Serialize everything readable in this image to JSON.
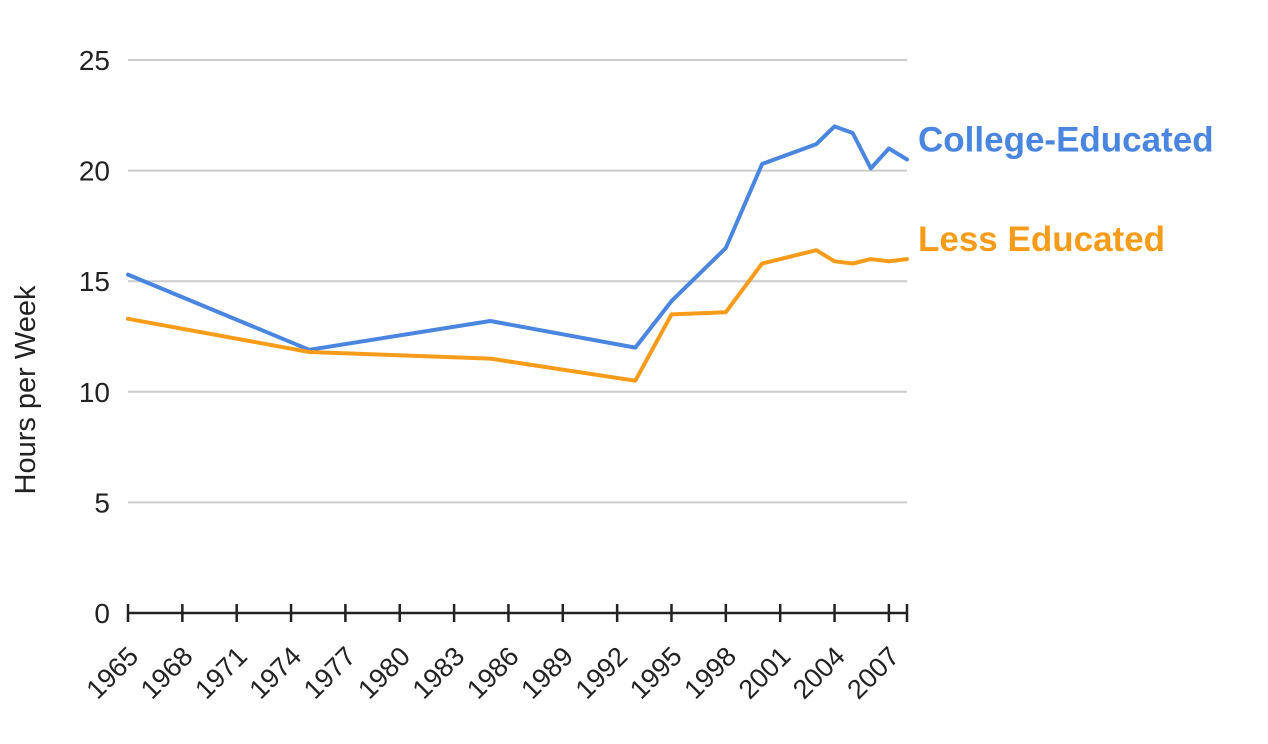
{
  "chart_data": {
    "type": "line",
    "title": "",
    "xlabel": "",
    "ylabel": "Hours per Week",
    "xlim": [
      1965,
      2008
    ],
    "ylim": [
      0,
      25
    ],
    "yticks": [
      0,
      5,
      10,
      15,
      20,
      25
    ],
    "xticks": [
      "1965",
      "1968",
      "1971",
      "1974",
      "1977",
      "1980",
      "1983",
      "1986",
      "1989",
      "1992",
      "1995",
      "1998",
      "2001",
      "2004",
      "2007"
    ],
    "grid": true,
    "legend": "inline labels at right end of lines",
    "series": [
      {
        "name": "College-Educated",
        "color": "#4a86e0",
        "points": [
          [
            1965,
            15.3
          ],
          [
            1975,
            11.9
          ],
          [
            1985,
            13.2
          ],
          [
            1993,
            12.0
          ],
          [
            1995,
            14.1
          ],
          [
            1998,
            16.5
          ],
          [
            2000,
            20.3
          ],
          [
            2003,
            21.2
          ],
          [
            2004,
            22.0
          ],
          [
            2005,
            21.7
          ],
          [
            2006,
            20.1
          ],
          [
            2007,
            21.0
          ],
          [
            2008,
            20.5
          ]
        ]
      },
      {
        "name": "Less Educated",
        "color": "#f79c1a",
        "points": [
          [
            1965,
            13.3
          ],
          [
            1975,
            11.8
          ],
          [
            1985,
            11.5
          ],
          [
            1993,
            10.5
          ],
          [
            1995,
            13.5
          ],
          [
            1998,
            13.6
          ],
          [
            2000,
            15.8
          ],
          [
            2003,
            16.4
          ],
          [
            2004,
            15.9
          ],
          [
            2005,
            15.8
          ],
          [
            2006,
            16.0
          ],
          [
            2007,
            15.9
          ],
          [
            2008,
            16.0
          ]
        ]
      }
    ]
  }
}
